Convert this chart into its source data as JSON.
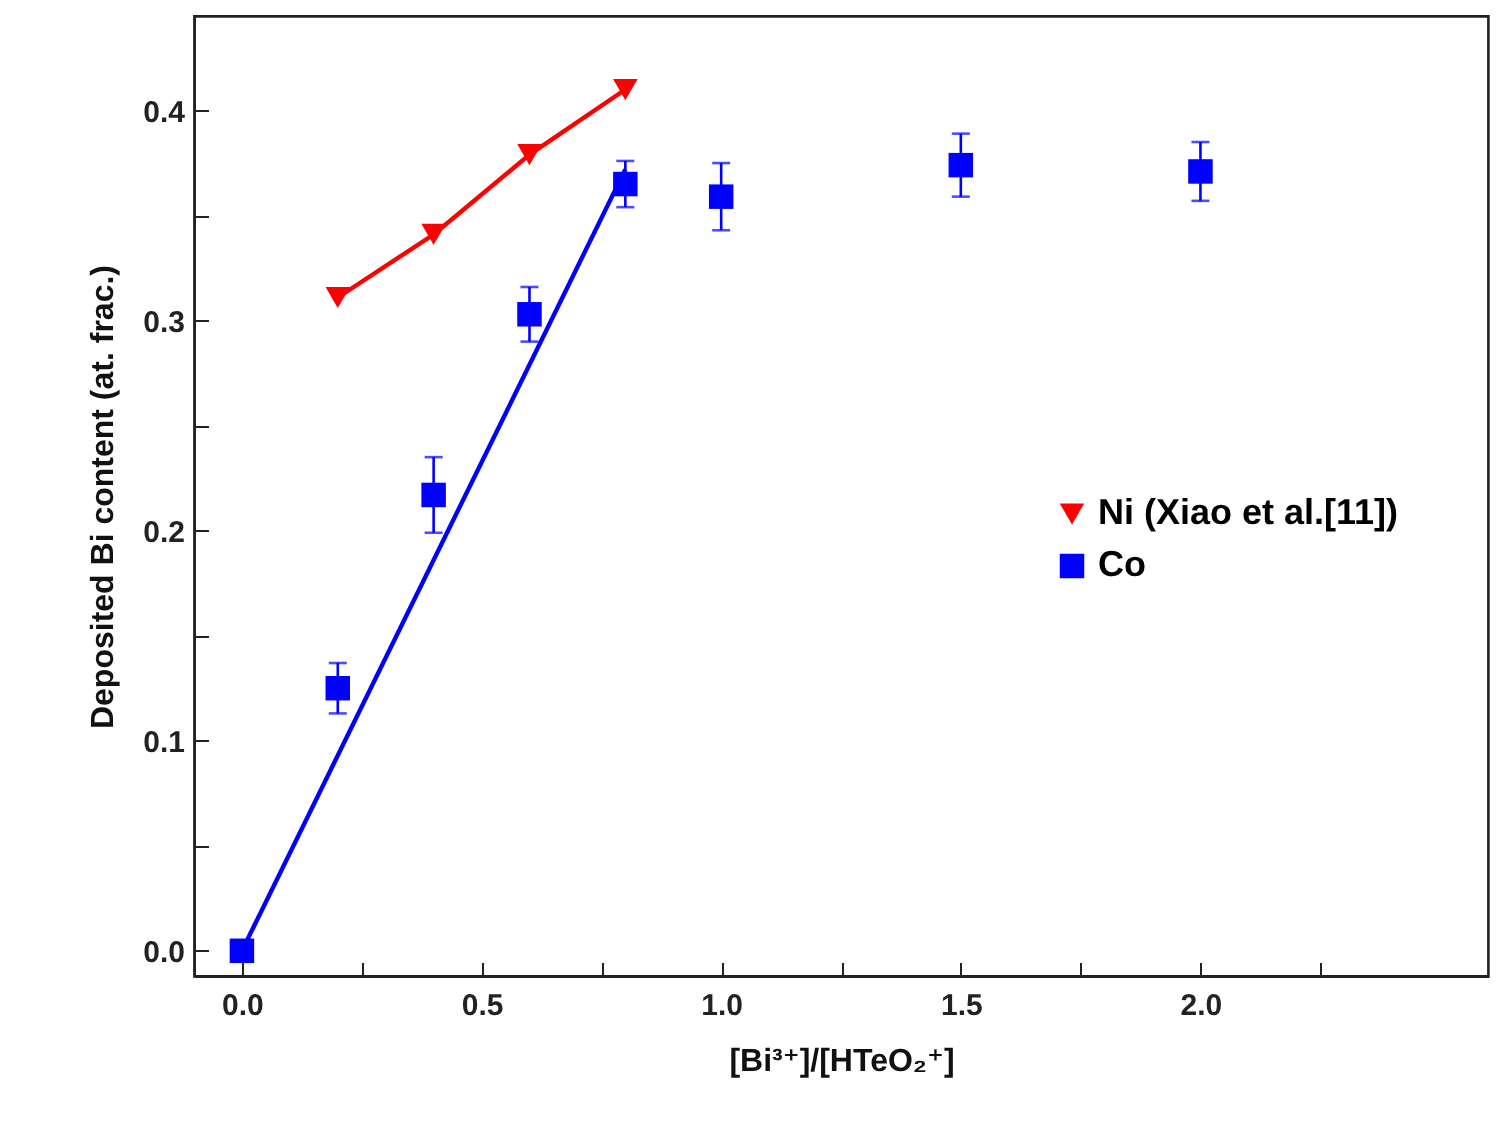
{
  "chart_data": {
    "type": "scatter",
    "xlabel": "[Bi³⁺]/[HTeO₂⁺]",
    "ylabel": "Deposited Bi content (at. frac.)",
    "xlim": [
      -0.1,
      2.6
    ],
    "ylim": [
      -0.012,
      0.445
    ],
    "xticks": [
      {
        "value": 0,
        "label": "0.0"
      },
      {
        "value": 0.25,
        "label": null
      },
      {
        "value": 0.5,
        "label": "0.5"
      },
      {
        "value": 0.75,
        "label": null
      },
      {
        "value": 1,
        "label": "1.0"
      },
      {
        "value": 1.25,
        "label": null
      },
      {
        "value": 1.5,
        "label": "1.5"
      },
      {
        "value": 1.75,
        "label": null
      },
      {
        "value": 2,
        "label": "2.0"
      },
      {
        "value": 2.25,
        "label": null
      }
    ],
    "yticks": [
      {
        "value": 0,
        "label": "0.0"
      },
      {
        "value": 0.05,
        "label": null
      },
      {
        "value": 0.1,
        "label": "0.1"
      },
      {
        "value": 0.15,
        "label": null
      },
      {
        "value": 0.2,
        "label": "0.2"
      },
      {
        "value": 0.25,
        "label": null
      },
      {
        "value": 0.3,
        "label": "0.3"
      },
      {
        "value": 0.35,
        "label": null
      },
      {
        "value": 0.4,
        "label": "0.4"
      }
    ],
    "grid": false,
    "legend": "right",
    "series": [
      {
        "name": "Ni (Xiao et al.[11])",
        "type": "line",
        "marker": "triangle",
        "color": "#ff0000",
        "x": [
          0.2,
          0.4,
          0.6,
          0.8
        ],
        "values": [
          0.311,
          0.341,
          0.379,
          0.41
        ]
      },
      {
        "name": "Co",
        "marker": "square",
        "color": "#0000ff",
        "x": [
          0,
          0.2,
          0.4,
          0.6,
          0.8,
          1.0,
          1.5,
          2.0
        ],
        "values": [
          0.0,
          0.125,
          0.217,
          0.303,
          0.365,
          0.359,
          0.374,
          0.371
        ],
        "errors": [
          null,
          0.012,
          0.018,
          0.013,
          0.011,
          0.016,
          0.015,
          0.014
        ]
      },
      {
        "type": "line",
        "marker": "none",
        "color": "#0000ff",
        "x": [
          0,
          0.8
        ],
        "values": [
          0,
          0.372
        ]
      }
    ]
  }
}
